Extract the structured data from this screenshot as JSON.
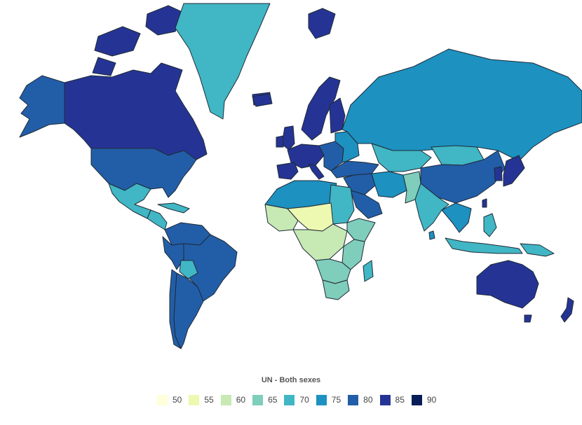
{
  "legend": {
    "title": "UN - Both sexes",
    "items": [
      {
        "label": "50",
        "color": "#ffffd9"
      },
      {
        "label": "55",
        "color": "#edf8b1"
      },
      {
        "label": "60",
        "color": "#c7e9b4"
      },
      {
        "label": "65",
        "color": "#7fcdbb"
      },
      {
        "label": "70",
        "color": "#41b6c4"
      },
      {
        "label": "75",
        "color": "#1d91c0"
      },
      {
        "label": "80",
        "color": "#225ea8"
      },
      {
        "label": "85",
        "color": "#253494"
      },
      {
        "label": "90",
        "color": "#081d58"
      }
    ]
  },
  "regions": [
    {
      "name": "alaska",
      "color": "#225ea8"
    },
    {
      "name": "canada",
      "color": "#253494"
    },
    {
      "name": "arctic-islands",
      "color": "#253494"
    },
    {
      "name": "greenland",
      "color": "#41b6c4"
    },
    {
      "name": "iceland",
      "color": "#253494"
    },
    {
      "name": "usa",
      "color": "#225ea8"
    },
    {
      "name": "mexico",
      "color": "#41b6c4"
    },
    {
      "name": "central-america",
      "color": "#41b6c4"
    },
    {
      "name": "caribbean",
      "color": "#41b6c4"
    },
    {
      "name": "colombia-venezuela",
      "color": "#225ea8"
    },
    {
      "name": "brazil",
      "color": "#225ea8"
    },
    {
      "name": "peru-bolivia",
      "color": "#225ea8"
    },
    {
      "name": "bolivia",
      "color": "#41b6c4"
    },
    {
      "name": "chile",
      "color": "#225ea8"
    },
    {
      "name": "argentina",
      "color": "#225ea8"
    },
    {
      "name": "scandinavia",
      "color": "#253494"
    },
    {
      "name": "finland",
      "color": "#253494"
    },
    {
      "name": "uk",
      "color": "#253494"
    },
    {
      "name": "ireland",
      "color": "#253494"
    },
    {
      "name": "western-europe",
      "color": "#253494"
    },
    {
      "name": "iberia",
      "color": "#253494"
    },
    {
      "name": "italy",
      "color": "#253494"
    },
    {
      "name": "eastern-europe",
      "color": "#225ea8"
    },
    {
      "name": "baltics-belarus-ukraine",
      "color": "#1d91c0"
    },
    {
      "name": "russia",
      "color": "#1d91c0"
    },
    {
      "name": "central-asia",
      "color": "#41b6c4"
    },
    {
      "name": "mongolia",
      "color": "#41b6c4"
    },
    {
      "name": "china",
      "color": "#225ea8"
    },
    {
      "name": "korea",
      "color": "#253494"
    },
    {
      "name": "japan",
      "color": "#253494"
    },
    {
      "name": "turkey-caucasus",
      "color": "#225ea8"
    },
    {
      "name": "middle-east",
      "color": "#225ea8"
    },
    {
      "name": "arabia",
      "color": "#225ea8"
    },
    {
      "name": "iran",
      "color": "#1d91c0"
    },
    {
      "name": "afghanistan-pakistan",
      "color": "#7fcdbb"
    },
    {
      "name": "india",
      "color": "#41b6c4"
    },
    {
      "name": "southeast-asia",
      "color": "#1d91c0"
    },
    {
      "name": "indonesia",
      "color": "#41b6c4"
    },
    {
      "name": "philippines",
      "color": "#41b6c4"
    },
    {
      "name": "papua",
      "color": "#41b6c4"
    },
    {
      "name": "north-africa",
      "color": "#1d91c0"
    },
    {
      "name": "west-africa",
      "color": "#c7e9b4"
    },
    {
      "name": "sahel",
      "color": "#edf8b1"
    },
    {
      "name": "egypt-sudan",
      "color": "#41b6c4"
    },
    {
      "name": "horn-of-africa",
      "color": "#7fcdbb"
    },
    {
      "name": "central-africa",
      "color": "#c7e9b4"
    },
    {
      "name": "east-africa",
      "color": "#7fcdbb"
    },
    {
      "name": "southern-africa",
      "color": "#7fcdbb"
    },
    {
      "name": "south-africa",
      "color": "#7fcdbb"
    },
    {
      "name": "madagascar",
      "color": "#41b6c4"
    },
    {
      "name": "australia",
      "color": "#253494"
    },
    {
      "name": "tasmania",
      "color": "#253494"
    },
    {
      "name": "new-zealand",
      "color": "#253494"
    },
    {
      "name": "sri-lanka",
      "color": "#1d91c0"
    },
    {
      "name": "taiwan",
      "color": "#253494"
    }
  ]
}
